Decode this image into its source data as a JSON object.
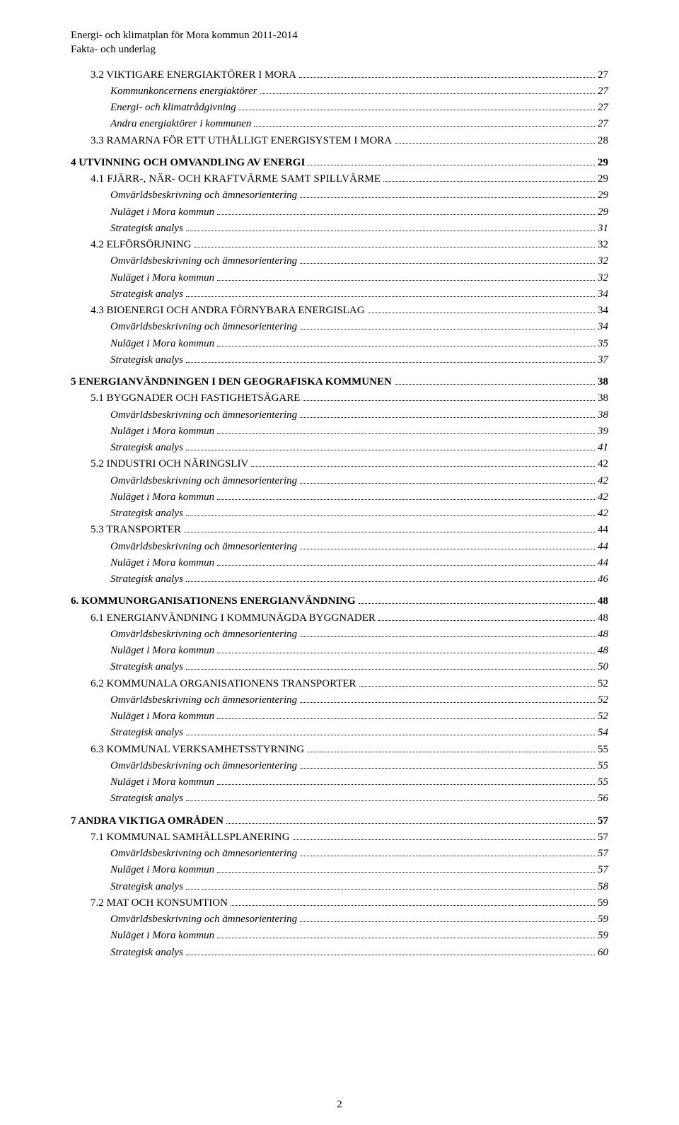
{
  "header": {
    "line1": "Energi- och klimatplan för Mora kommun 2011-2014",
    "line2": "Fakta- och underlag"
  },
  "toc": [
    {
      "level": 1,
      "label": "3.2 VIKTIGARE ENERGIAKTÖRER I MORA",
      "page": "27"
    },
    {
      "level": 2,
      "label": "Kommunkoncernens energiaktörer",
      "page": "27"
    },
    {
      "level": 2,
      "label": "Energi- och klimatrådgivning",
      "page": "27"
    },
    {
      "level": 2,
      "label": "Andra energiaktörer i kommunen",
      "page": "27"
    },
    {
      "level": 1,
      "label": "3.3 RAMARNA FÖR ETT UTHÅLLIGT ENERGISYSTEM I MORA",
      "page": "28"
    },
    {
      "level": 0,
      "label": "4 UTVINNING OCH OMVANDLING AV ENERGI",
      "page": "29"
    },
    {
      "level": 1,
      "label": "4.1 FJÄRR-, NÄR- OCH KRAFTVÄRME SAMT SPILLVÄRME",
      "page": "29",
      "smallcaps": true
    },
    {
      "level": 2,
      "label": "Omvärldsbeskrivning och ämnesorientering",
      "page": "29"
    },
    {
      "level": 2,
      "label": "Nuläget i Mora kommun",
      "page": "29"
    },
    {
      "level": 2,
      "label": "Strategisk analys",
      "page": "31"
    },
    {
      "level": 1,
      "label": "4.2 ELFÖRSÖRJNING",
      "page": "32"
    },
    {
      "level": 2,
      "label": "Omvärldsbeskrivning och ämnesorientering",
      "page": "32"
    },
    {
      "level": 2,
      "label": "Nuläget i Mora kommun",
      "page": "32"
    },
    {
      "level": 2,
      "label": "Strategisk analys",
      "page": "34"
    },
    {
      "level": 1,
      "label": "4.3 BIOENERGI OCH ANDRA FÖRNYBARA ENERGISLAG",
      "page": "34"
    },
    {
      "level": 2,
      "label": "Omvärldsbeskrivning och ämnesorientering",
      "page": "34"
    },
    {
      "level": 2,
      "label": "Nuläget i Mora kommun",
      "page": "35"
    },
    {
      "level": 2,
      "label": "Strategisk analys",
      "page": "37"
    },
    {
      "level": 0,
      "label": "5 ENERGIANVÄNDNINGEN I DEN GEOGRAFISKA KOMMUNEN",
      "page": "38"
    },
    {
      "level": 1,
      "label": "5.1 BYGGNADER OCH FASTIGHETSÄGARE",
      "page": "38"
    },
    {
      "level": 2,
      "label": "Omvärldsbeskrivning och ämnesorientering",
      "page": "38"
    },
    {
      "level": 2,
      "label": "Nuläget i Mora kommun",
      "page": "39"
    },
    {
      "level": 2,
      "label": "Strategisk analys",
      "page": "41"
    },
    {
      "level": 1,
      "label": "5.2 INDUSTRI OCH NÄRINGSLIV",
      "page": "42"
    },
    {
      "level": 2,
      "label": "Omvärldsbeskrivning och ämnesorientering",
      "page": "42"
    },
    {
      "level": 2,
      "label": "Nuläget i Mora kommun",
      "page": "42"
    },
    {
      "level": 2,
      "label": "Strategisk analys",
      "page": "42"
    },
    {
      "level": 1,
      "label": "5.3 TRANSPORTER",
      "page": "44"
    },
    {
      "level": 2,
      "label": "Omvärldsbeskrivning och ämnesorientering",
      "page": "44"
    },
    {
      "level": 2,
      "label": "Nuläget i Mora kommun",
      "page": "44"
    },
    {
      "level": 2,
      "label": "Strategisk analys",
      "page": "46"
    },
    {
      "level": 0,
      "label": "6. KOMMUNORGANISATIONENS ENERGIANVÄNDNING",
      "page": "48"
    },
    {
      "level": 1,
      "label": "6.1 ENERGIANVÄNDNING I KOMMUNÄGDA BYGGNADER",
      "page": "48"
    },
    {
      "level": 2,
      "label": "Omvärldsbeskrivning och ämnesorientering",
      "page": "48"
    },
    {
      "level": 2,
      "label": "Nuläget i Mora kommun",
      "page": "48"
    },
    {
      "level": 2,
      "label": "Strategisk analys",
      "page": "50"
    },
    {
      "level": 1,
      "label": "6.2 KOMMUNALA ORGANISATIONENS TRANSPORTER",
      "page": "52"
    },
    {
      "level": 2,
      "label": "Omvärldsbeskrivning och ämnesorientering",
      "page": "52"
    },
    {
      "level": 2,
      "label": "Nuläget i Mora kommun",
      "page": "52"
    },
    {
      "level": 2,
      "label": "Strategisk analys",
      "page": "54"
    },
    {
      "level": 1,
      "label": "6.3 KOMMUNAL VERKSAMHETSSTYRNING",
      "page": "55"
    },
    {
      "level": 2,
      "label": "Omvärldsbeskrivning och ämnesorientering",
      "page": "55"
    },
    {
      "level": 2,
      "label": "Nuläget i Mora kommun",
      "page": "55"
    },
    {
      "level": 2,
      "label": "Strategisk analys",
      "page": "56"
    },
    {
      "level": 0,
      "label": "7 ANDRA VIKTIGA OMRÅDEN",
      "page": "57"
    },
    {
      "level": 1,
      "label": "7.1 KOMMUNAL SAMHÄLLSPLANERING",
      "page": "57"
    },
    {
      "level": 2,
      "label": "Omvärldsbeskrivning och ämnesorientering",
      "page": "57"
    },
    {
      "level": 2,
      "label": "Nuläget i Mora kommun",
      "page": "57"
    },
    {
      "level": 2,
      "label": "Strategisk analys",
      "page": "58"
    },
    {
      "level": 1,
      "label": "7.2 MAT OCH KONSUMTION",
      "page": "59"
    },
    {
      "level": 2,
      "label": "Omvärldsbeskrivning och ämnesorientering",
      "page": "59"
    },
    {
      "level": 2,
      "label": "Nuläget i Mora kommun",
      "page": "59"
    },
    {
      "level": 2,
      "label": "Strategisk analys",
      "page": "60"
    }
  ],
  "pagenum": "2"
}
